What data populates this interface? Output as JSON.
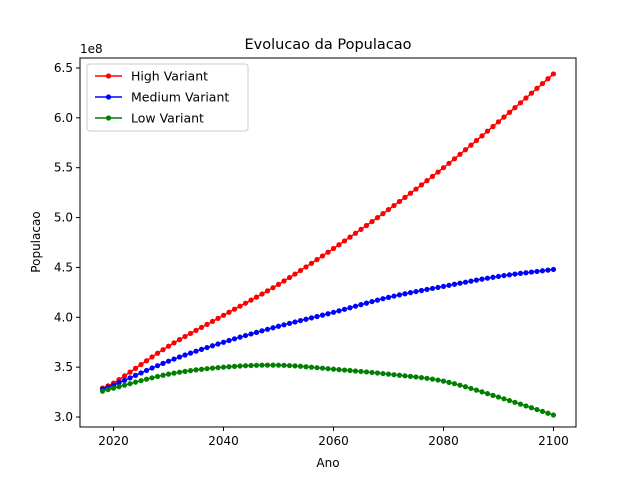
{
  "chart_data": {
    "type": "line",
    "title": "Evolucao da Populacao",
    "xlabel": "Ano",
    "ylabel": "Populacao",
    "y_offset_label": "1e8",
    "y_multiplier": 100000000,
    "x_range": [
      2018,
      2100
    ],
    "xlim": [
      2013.9,
      2104.1
    ],
    "ylim": [
      2.9,
      6.6
    ],
    "x_ticks": [
      2020,
      2040,
      2060,
      2080,
      2100
    ],
    "x_tick_labels": [
      "2020",
      "2040",
      "2060",
      "2080",
      "2100"
    ],
    "y_ticks": [
      3.0,
      3.5,
      4.0,
      4.5,
      5.0,
      5.5,
      6.0,
      6.5
    ],
    "y_tick_labels": [
      "3.0",
      "3.5",
      "4.0",
      "4.5",
      "5.0",
      "5.5",
      "6.0",
      "6.5"
    ],
    "grid": false,
    "legend_position": "top-left",
    "series": [
      {
        "name": "High Variant",
        "color": "#ff0000",
        "points": [
          [
            2018,
            3.29
          ],
          [
            2020,
            3.34
          ],
          [
            2030,
            3.71
          ],
          [
            2040,
            4.02
          ],
          [
            2050,
            4.33
          ],
          [
            2060,
            4.69
          ],
          [
            2070,
            5.08
          ],
          [
            2080,
            5.5
          ],
          [
            2090,
            5.96
          ],
          [
            2100,
            6.44
          ]
        ]
      },
      {
        "name": "Medium Variant",
        "color": "#0000ff",
        "points": [
          [
            2018,
            3.28
          ],
          [
            2020,
            3.32
          ],
          [
            2030,
            3.56
          ],
          [
            2040,
            3.75
          ],
          [
            2050,
            3.91
          ],
          [
            2060,
            4.05
          ],
          [
            2070,
            4.2
          ],
          [
            2080,
            4.31
          ],
          [
            2090,
            4.41
          ],
          [
            2100,
            4.48
          ]
        ]
      },
      {
        "name": "Low Variant",
        "color": "#008000",
        "points": [
          [
            2018,
            3.26
          ],
          [
            2020,
            3.29
          ],
          [
            2030,
            3.43
          ],
          [
            2040,
            3.5
          ],
          [
            2050,
            3.52
          ],
          [
            2060,
            3.48
          ],
          [
            2070,
            3.43
          ],
          [
            2080,
            3.36
          ],
          [
            2090,
            3.2
          ],
          [
            2100,
            3.02
          ]
        ]
      }
    ]
  }
}
